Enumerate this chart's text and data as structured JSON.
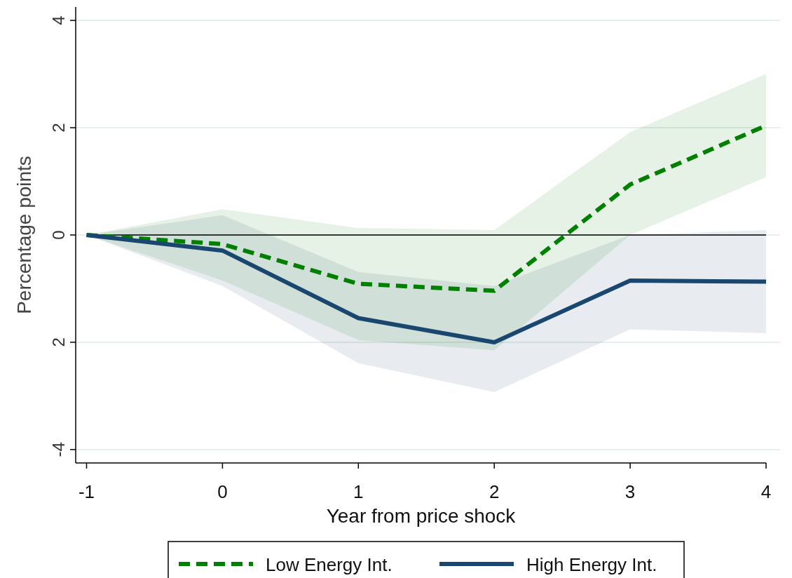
{
  "chart_data": {
    "type": "line",
    "xlabel": "Year from price shock",
    "ylabel": "Percentage points",
    "x": [
      -1,
      0,
      1,
      2,
      3,
      4
    ],
    "series": [
      {
        "name": "Low Energy Int.",
        "color": "#008000",
        "line_style": "dashed",
        "values": [
          0,
          -0.17,
          -0.91,
          -1.04,
          0.94,
          2.04
        ],
        "lower": [
          0,
          -0.85,
          -1.96,
          -2.15,
          0.0,
          1.08
        ],
        "upper": [
          0,
          0.48,
          0.13,
          0.09,
          1.92,
          3.0
        ]
      },
      {
        "name": "High Energy Int.",
        "color": "#1a476f",
        "line_style": "solid",
        "values": [
          0,
          -0.29,
          -1.55,
          -2.0,
          -0.85,
          -0.87
        ],
        "lower": [
          0,
          -0.95,
          -2.39,
          -2.93,
          -1.76,
          -1.83
        ],
        "upper": [
          0,
          0.37,
          -0.69,
          -0.95,
          0.0,
          0.09
        ]
      }
    ],
    "xlim": [
      -1.08,
      4
    ],
    "xticks": [
      -1,
      0,
      1,
      2,
      3,
      4
    ],
    "ylim": [
      -4.25,
      4.25
    ],
    "yticks": [
      4,
      2,
      0,
      {
        "value": -2,
        "label": "2"
      },
      -4
    ],
    "grid": "y",
    "legend": "bottom",
    "ref_lines": [
      {
        "axis": "y",
        "value": 0,
        "color": "#000000"
      }
    ]
  }
}
